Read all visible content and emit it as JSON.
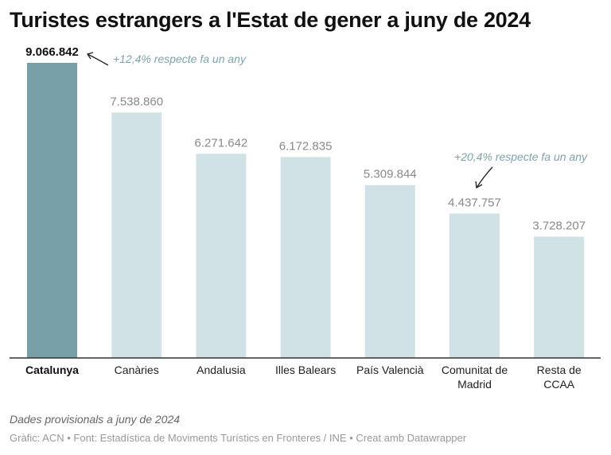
{
  "chart_data": {
    "type": "bar",
    "title": "Turistes estrangers a l'Estat de gener a juny de 2024",
    "categories": [
      "Catalunya",
      "Canàries",
      "Andalusia",
      "Illes Balears",
      "País Valencià",
      "Comunitat de Madrid",
      "Resta de CCAA"
    ],
    "values": [
      9066842,
      7538860,
      6271642,
      6172835,
      5309844,
      4437757,
      3728207
    ],
    "value_labels": [
      "9.066.842",
      "7.538.860",
      "6.271.642",
      "6.172.835",
      "5.309.844",
      "4.437.757",
      "3.728.207"
    ],
    "highlight_index": 0,
    "colors": {
      "highlight": "#77a0a8",
      "default": "#d1e2e6",
      "annotation": "#7fa3ab",
      "axis": "#333333"
    },
    "annotations": [
      {
        "text": "+12,4% respecte fa un any",
        "target": "Catalunya"
      },
      {
        "text": "+20,4% respecte fa un any",
        "target": "Comunitat de Madrid"
      }
    ],
    "ylim": [
      0,
      9066842
    ],
    "grid": false,
    "xlabel": "",
    "ylabel": ""
  },
  "footer": {
    "note": "Dades provisionals a juny de 2024",
    "credit": "Gràfic: ACN • Font: Estadística de Moviments Turístics en Fronteres / INE • Creat amb Datawrapper"
  }
}
